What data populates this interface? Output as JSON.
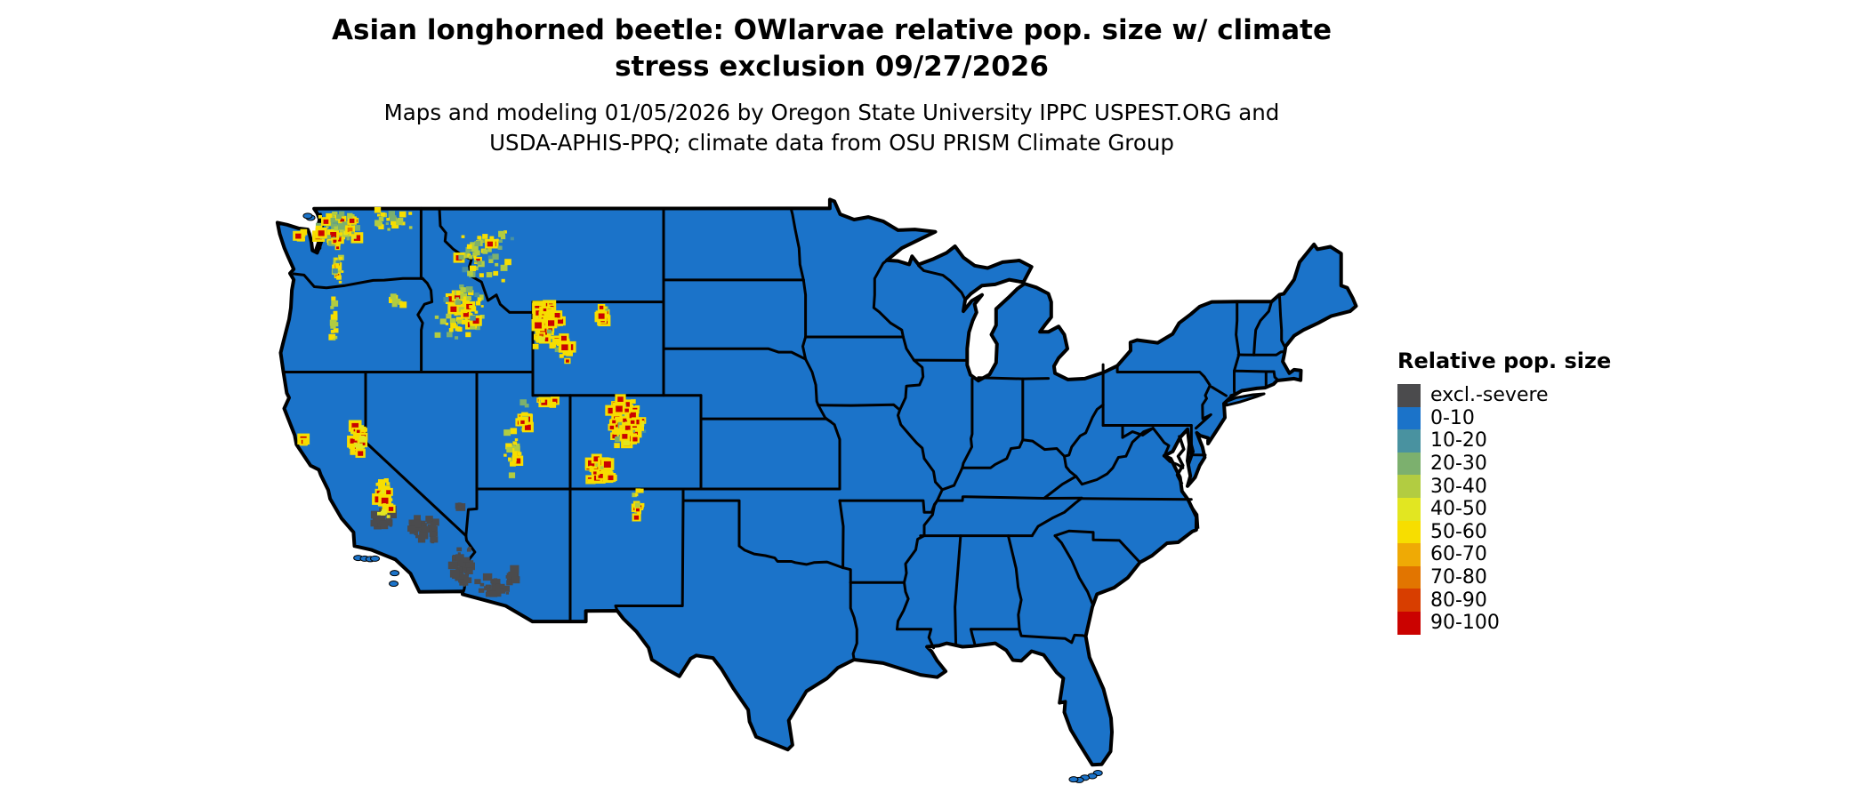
{
  "title": {
    "line1": "Asian longhorned beetle: OWlarvae relative pop. size w/ climate",
    "line2": "stress exclusion 09/27/2026"
  },
  "subtitle": {
    "line1": "Maps and modeling 01/05/2026 by Oregon State University IPPC USPEST.ORG and",
    "line2": "USDA-APHIS-PPQ; climate data from OSU PRISM Climate Group"
  },
  "legend": {
    "title": "Relative pop. size",
    "items": [
      {
        "label": "excl.-severe",
        "color": "#4b4b4d"
      },
      {
        "label": "0-10",
        "color": "#1b73c9"
      },
      {
        "label": "10-20",
        "color": "#4992a0"
      },
      {
        "label": "20-30",
        "color": "#7cb06e"
      },
      {
        "label": "30-40",
        "color": "#b2cc41"
      },
      {
        "label": "40-50",
        "color": "#e2e621"
      },
      {
        "label": "50-60",
        "color": "#f7de00"
      },
      {
        "label": "60-70",
        "color": "#efaa05"
      },
      {
        "label": "70-80",
        "color": "#e27500"
      },
      {
        "label": "80-90",
        "color": "#d83e00"
      },
      {
        "label": "90-100",
        "color": "#cb0200"
      }
    ]
  },
  "map": {
    "background_color": "#ffffff",
    "land_color": "#1b73c9",
    "border_color": "#000000",
    "hotspot_clusters": [
      {
        "name": "north-cascades-wa",
        "lon": -121.4,
        "lat": 48.1,
        "ex": 1.25,
        "ey": 0.85,
        "count": 70,
        "mix": [
          [
            "50-60",
            30
          ],
          [
            "40-50",
            15
          ],
          [
            "30-40",
            15
          ],
          [
            "20-30",
            15
          ],
          [
            "90-100",
            15
          ],
          [
            "70-80",
            10
          ]
        ]
      },
      {
        "name": "olympics-wa",
        "lon": -123.45,
        "lat": 47.8,
        "ex": 0.35,
        "ey": 0.3,
        "count": 12,
        "mix": [
          [
            "50-60",
            50
          ],
          [
            "30-40",
            30
          ],
          [
            "90-100",
            20
          ]
        ]
      },
      {
        "name": "south-cascades-wa",
        "lon": -121.55,
        "lat": 46.6,
        "ex": 0.35,
        "ey": 1.0,
        "count": 24,
        "mix": [
          [
            "50-60",
            45
          ],
          [
            "30-40",
            30
          ],
          [
            "90-100",
            15
          ],
          [
            "10-20",
            10
          ]
        ]
      },
      {
        "name": "ne-washington",
        "lon": -118.6,
        "lat": 48.5,
        "ex": 1.2,
        "ey": 0.55,
        "count": 24,
        "mix": [
          [
            "50-60",
            40
          ],
          [
            "30-40",
            35
          ],
          [
            "20-30",
            25
          ]
        ]
      },
      {
        "name": "west-montana",
        "lon": -113.6,
        "lat": 47.0,
        "ex": 1.6,
        "ey": 1.3,
        "count": 55,
        "mix": [
          [
            "30-40",
            35
          ],
          [
            "50-60",
            30
          ],
          [
            "20-30",
            20
          ],
          [
            "10-20",
            10
          ],
          [
            "90-100",
            5
          ]
        ]
      },
      {
        "name": "central-idaho",
        "lon": -114.9,
        "lat": 44.6,
        "ex": 1.35,
        "ey": 1.2,
        "count": 80,
        "mix": [
          [
            "50-60",
            35
          ],
          [
            "30-40",
            30
          ],
          [
            "20-30",
            15
          ],
          [
            "10-20",
            10
          ],
          [
            "90-100",
            10
          ]
        ]
      },
      {
        "name": "yellowstone-wy",
        "lon": -110.3,
        "lat": 44.1,
        "ex": 0.9,
        "ey": 1.05,
        "count": 90,
        "mix": [
          [
            "90-100",
            45
          ],
          [
            "50-60",
            25
          ],
          [
            "40-50",
            10
          ],
          [
            "20-30",
            12
          ],
          [
            "80-90",
            8
          ]
        ]
      },
      {
        "name": "bighorn-wy",
        "lon": -107.3,
        "lat": 44.4,
        "ex": 0.3,
        "ey": 0.55,
        "count": 18,
        "mix": [
          [
            "90-100",
            50
          ],
          [
            "50-60",
            35
          ],
          [
            "20-30",
            15
          ]
        ]
      },
      {
        "name": "wind-river-wy",
        "lon": -109.3,
        "lat": 43.0,
        "ex": 0.5,
        "ey": 0.6,
        "count": 22,
        "mix": [
          [
            "90-100",
            40
          ],
          [
            "50-60",
            40
          ],
          [
            "20-30",
            20
          ]
        ]
      },
      {
        "name": "uinta-ut",
        "lon": -110.3,
        "lat": 40.7,
        "ex": 0.72,
        "ey": 0.18,
        "count": 16,
        "mix": [
          [
            "90-100",
            50
          ],
          [
            "50-60",
            35
          ],
          [
            "20-30",
            15
          ]
        ]
      },
      {
        "name": "wasatch-ut",
        "lon": -111.5,
        "lat": 40.1,
        "ex": 0.25,
        "ey": 0.8,
        "count": 18,
        "mix": [
          [
            "90-100",
            45
          ],
          [
            "50-60",
            40
          ],
          [
            "20-30",
            15
          ]
        ]
      },
      {
        "name": "utah-plateaus",
        "lon": -112.1,
        "lat": 38.5,
        "ex": 0.5,
        "ey": 1.15,
        "count": 22,
        "mix": [
          [
            "50-60",
            55
          ],
          [
            "30-40",
            25
          ],
          [
            "90-100",
            20
          ]
        ]
      },
      {
        "name": "colorado-front-range",
        "lon": -106.0,
        "lat": 39.8,
        "ex": 1.0,
        "ey": 1.05,
        "count": 85,
        "mix": [
          [
            "90-100",
            40
          ],
          [
            "50-60",
            28
          ],
          [
            "40-50",
            12
          ],
          [
            "20-30",
            12
          ],
          [
            "10-20",
            8
          ]
        ]
      },
      {
        "name": "san-juan-co",
        "lon": -107.4,
        "lat": 37.8,
        "ex": 0.8,
        "ey": 0.55,
        "count": 45,
        "mix": [
          [
            "90-100",
            45
          ],
          [
            "50-60",
            30
          ],
          [
            "30-40",
            25
          ]
        ]
      },
      {
        "name": "sangre-de-cristo-nm",
        "lon": -105.4,
        "lat": 36.3,
        "ex": 0.3,
        "ey": 0.85,
        "count": 14,
        "mix": [
          [
            "50-60",
            55
          ],
          [
            "90-100",
            25
          ],
          [
            "30-40",
            20
          ]
        ]
      },
      {
        "name": "sierra-nevada-north",
        "lon": -120.4,
        "lat": 39.0,
        "ex": 0.45,
        "ey": 0.75,
        "count": 34,
        "mix": [
          [
            "90-100",
            45
          ],
          [
            "50-60",
            35
          ],
          [
            "40-50",
            20
          ]
        ]
      },
      {
        "name": "sierra-nevada-south",
        "lon": -119.0,
        "lat": 36.7,
        "ex": 0.5,
        "ey": 0.9,
        "count": 40,
        "mix": [
          [
            "90-100",
            45
          ],
          [
            "50-60",
            35
          ],
          [
            "40-50",
            20
          ]
        ]
      },
      {
        "name": "mendocino-speck",
        "lon": -123.3,
        "lat": 39.0,
        "ex": 0.12,
        "ey": 0.2,
        "count": 4,
        "mix": [
          [
            "50-60",
            50
          ],
          [
            "90-100",
            50
          ]
        ]
      },
      {
        "name": "oregon-cascades",
        "lon": -121.7,
        "lat": 44.3,
        "ex": 0.25,
        "ey": 1.1,
        "count": 14,
        "mix": [
          [
            "50-60",
            55
          ],
          [
            "30-40",
            45
          ]
        ]
      },
      {
        "name": "ne-oregon",
        "lon": -118.3,
        "lat": 45.0,
        "ex": 0.5,
        "ey": 0.4,
        "count": 8,
        "mix": [
          [
            "50-60",
            60
          ],
          [
            "30-40",
            40
          ]
        ]
      }
    ],
    "exclusion_zones": [
      {
        "name": "s-san-joaquin-ca",
        "lon": -119.0,
        "lat": 35.7,
        "ex": 0.55,
        "ey": 0.5,
        "count": 24
      },
      {
        "name": "mojave-ca",
        "lon": -116.8,
        "lat": 35.2,
        "ex": 0.9,
        "ey": 0.6,
        "count": 30
      },
      {
        "name": "lower-colorado-river",
        "lon": -114.9,
        "lat": 33.6,
        "ex": 0.6,
        "ey": 0.9,
        "count": 30
      },
      {
        "name": "sw-arizona",
        "lon": -113.2,
        "lat": 32.8,
        "ex": 0.9,
        "ey": 0.55,
        "count": 28
      },
      {
        "name": "phoenix-az",
        "lon": -112.2,
        "lat": 33.3,
        "ex": 0.5,
        "ey": 0.35,
        "count": 14
      },
      {
        "name": "las-vegas-nv",
        "lon": -114.9,
        "lat": 36.2,
        "ex": 0.3,
        "ey": 0.2,
        "count": 6
      }
    ],
    "islands": {
      "channel_islands": [
        [
          -120.4,
          34.05
        ],
        [
          -120.05,
          34.02
        ],
        [
          -119.75,
          34.0
        ],
        [
          -119.5,
          34.02
        ],
        [
          -118.45,
          33.4
        ],
        [
          -118.5,
          32.95
        ]
      ],
      "florida_keys": [
        [
          -80.8,
          24.85
        ],
        [
          -81.1,
          24.72
        ],
        [
          -81.5,
          24.65
        ],
        [
          -81.8,
          24.55
        ],
        [
          -82.1,
          24.58
        ]
      ],
      "san_juan_islands": [
        [
          -122.95,
          48.6
        ],
        [
          -123.1,
          48.68
        ]
      ]
    }
  }
}
